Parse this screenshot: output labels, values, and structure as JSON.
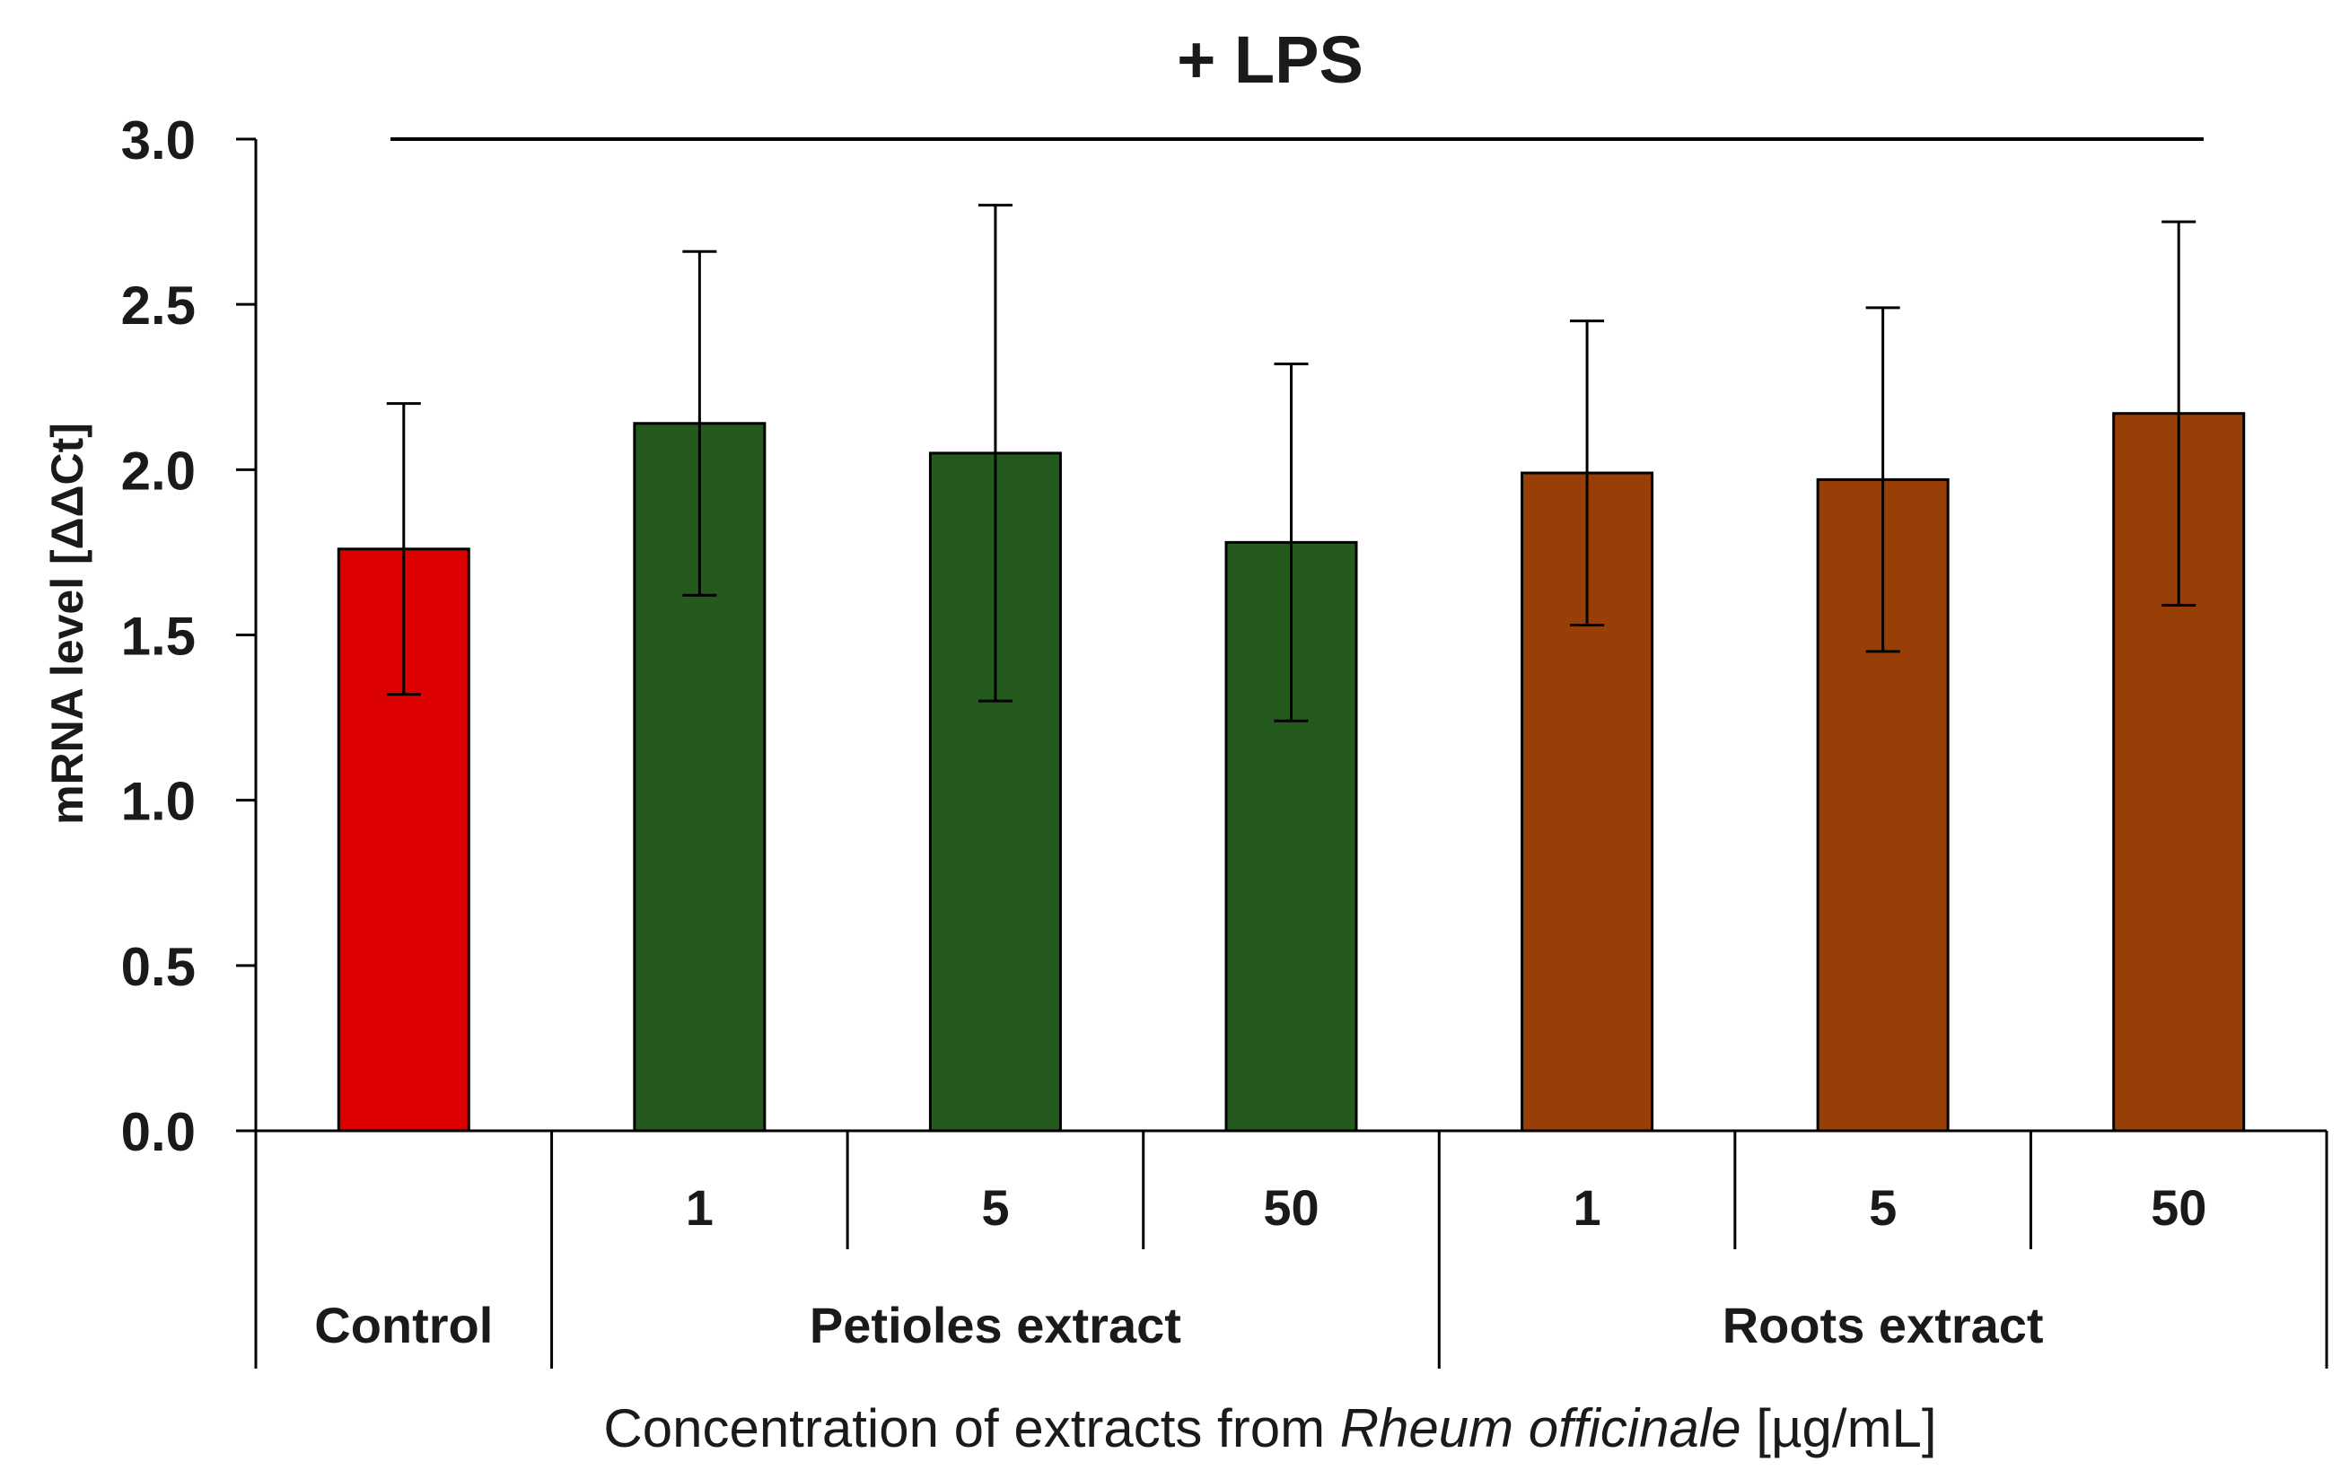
{
  "chart_data": {
    "type": "bar",
    "title": "+ LPS",
    "ylabel": "mRNA level [ΔΔCt]",
    "xlabel": {
      "prefix": "Concentration of extracts from",
      "species": "Rheum officinale",
      "unit": "[µg/mL]"
    },
    "ylim": [
      0,
      3.0
    ],
    "yticks": [
      "0.0",
      "0.5",
      "1.0",
      "1.5",
      "2.0",
      "2.5",
      "3.0"
    ],
    "categories": [
      "",
      "1",
      "5",
      "50",
      "1",
      "5",
      "50"
    ],
    "groups": [
      {
        "label": "Control",
        "span": [
          0,
          0
        ]
      },
      {
        "label": "Petioles extract",
        "span": [
          1,
          3
        ]
      },
      {
        "label": "Roots extract",
        "span": [
          4,
          6
        ]
      }
    ],
    "values": [
      1.76,
      2.14,
      2.05,
      1.78,
      1.99,
      1.97,
      2.17
    ],
    "errors": [
      0.44,
      0.52,
      0.75,
      0.54,
      0.46,
      0.52,
      0.58
    ],
    "colors": [
      "#dd0000",
      "#245a1e",
      "#245a1e",
      "#245a1e",
      "#983f08",
      "#983f08",
      "#983f08"
    ],
    "grid": false
  }
}
